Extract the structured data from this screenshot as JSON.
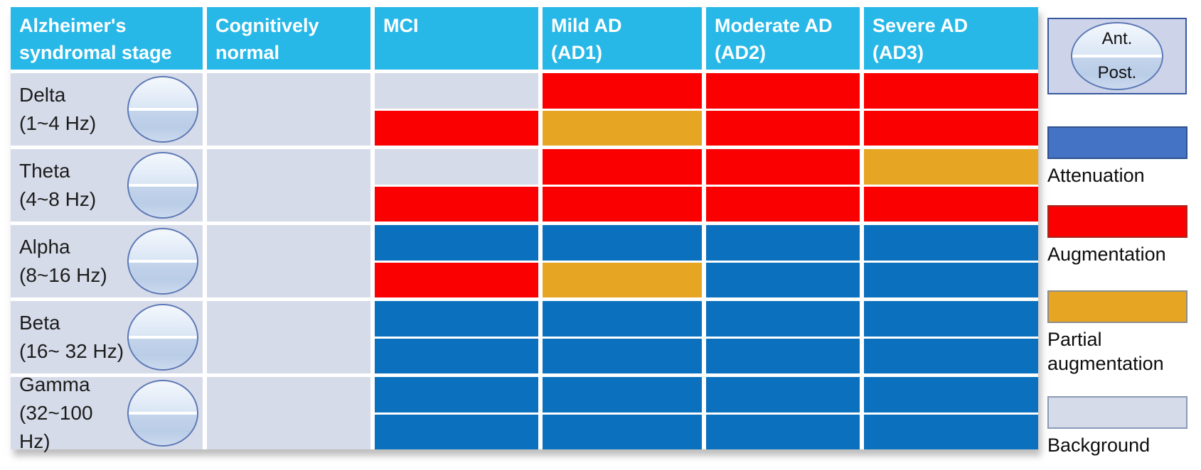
{
  "table": {
    "header": [
      "Alzheimer's\nsyndromal stage",
      "Cognitively\nnormal",
      "MCI",
      "Mild AD\n(AD1)",
      "Moderate AD\n(AD2)",
      "Severe AD\n(AD3)"
    ],
    "bands": [
      {
        "name": "Delta",
        "freq": "(1~4 Hz)"
      },
      {
        "name": "Theta",
        "freq": "(4~8 Hz)"
      },
      {
        "name": "Alpha",
        "freq": "(8~16 Hz)"
      },
      {
        "name": "Beta",
        "freq": "(16~ 32 Hz)"
      },
      {
        "name": "Gamma",
        "freq": "(32~100 Hz)"
      }
    ]
  },
  "chart_data": {
    "type": "heatmap",
    "rows": [
      "Delta (1~4 Hz)",
      "Theta (4~8 Hz)",
      "Alpha (8~16 Hz)",
      "Beta (16~ 32 Hz)",
      "Gamma (32~100 Hz)"
    ],
    "columns": [
      "Cognitively normal",
      "MCI",
      "Mild AD (AD1)",
      "Moderate AD (AD2)",
      "Severe AD (AD3)"
    ],
    "cell_split": [
      "anterior",
      "posterior"
    ],
    "values": [
      [
        [
          "background",
          "background"
        ],
        [
          "background",
          "augmentation"
        ],
        [
          "augmentation",
          "partial_augmentation"
        ],
        [
          "augmentation",
          "augmentation"
        ],
        [
          "augmentation",
          "augmentation"
        ]
      ],
      [
        [
          "background",
          "background"
        ],
        [
          "background",
          "augmentation"
        ],
        [
          "augmentation",
          "augmentation"
        ],
        [
          "augmentation",
          "augmentation"
        ],
        [
          "partial_augmentation",
          "augmentation"
        ]
      ],
      [
        [
          "background",
          "background"
        ],
        [
          "attenuation",
          "augmentation"
        ],
        [
          "attenuation",
          "partial_augmentation"
        ],
        [
          "attenuation",
          "attenuation"
        ],
        [
          "attenuation",
          "attenuation"
        ]
      ],
      [
        [
          "background",
          "background"
        ],
        [
          "attenuation",
          "attenuation"
        ],
        [
          "attenuation",
          "attenuation"
        ],
        [
          "attenuation",
          "attenuation"
        ],
        [
          "attenuation",
          "attenuation"
        ]
      ],
      [
        [
          "background",
          "background"
        ],
        [
          "attenuation",
          "attenuation"
        ],
        [
          "attenuation",
          "attenuation"
        ],
        [
          "attenuation",
          "attenuation"
        ],
        [
          "attenuation",
          "attenuation"
        ]
      ]
    ],
    "legend_position": "right"
  },
  "colors": {
    "header_fill": "#27B8E8",
    "attenuation": "#0B71BE",
    "augmentation": "#FB0000",
    "partial_augmentation": "#E7A524",
    "background": "#D6DBE9",
    "legend_attenuation_swatch": "#4472C4"
  },
  "legend": {
    "orientation": {
      "anterior": "Ant.",
      "posterior": "Post."
    },
    "items": [
      {
        "id": "attenuation",
        "label": "Attenuation",
        "color": "#4472C4"
      },
      {
        "id": "augmentation",
        "label": "Augmentation",
        "color": "#FB0000"
      },
      {
        "id": "partial_augmentation",
        "label": "Partial augmentation",
        "color": "#E7A524"
      },
      {
        "id": "background",
        "label": "Background",
        "color": "#D6DBE9"
      }
    ]
  }
}
